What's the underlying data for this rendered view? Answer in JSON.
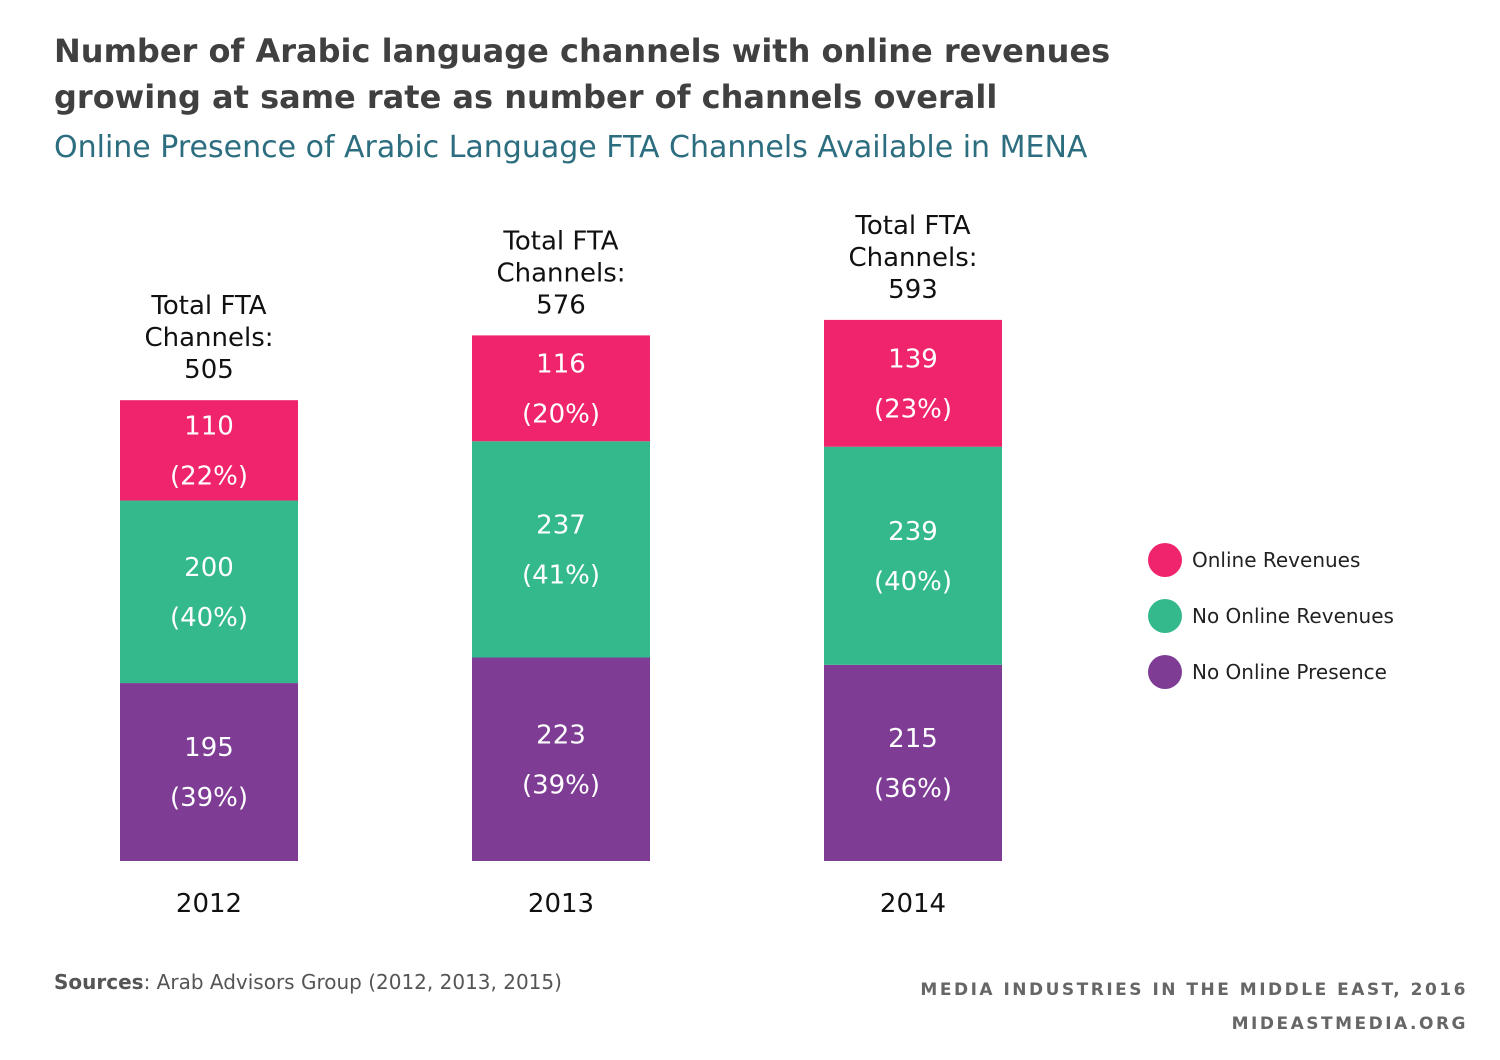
{
  "title_line1": "Number of Arabic language channels with online revenues",
  "title_line2": "growing at same rate as number of channels overall",
  "subtitle": "Online Presence of Arabic Language FTA Channels Available in MENA",
  "colors": {
    "title": "#404040",
    "subtitle": "#2c6e7f",
    "online_revenues": "#f0246c",
    "no_online_revenues": "#33b98b",
    "no_online_presence": "#7e3c95"
  },
  "chart_data": {
    "type": "bar",
    "stacked": true,
    "categories": [
      "2012",
      "2013",
      "2014"
    ],
    "series": [
      {
        "name": "No Online Presence",
        "values": [
          195,
          223,
          215
        ],
        "percent_labels": [
          "(39%)",
          "(39%)",
          "(36%)"
        ]
      },
      {
        "name": "No Online Revenues",
        "values": [
          200,
          237,
          239
        ],
        "percent_labels": [
          "(40%)",
          "(41%)",
          "(40%)"
        ]
      },
      {
        "name": "Online Revenues",
        "values": [
          110,
          116,
          139
        ],
        "percent_labels": [
          "(22%)",
          "(20%)",
          "(23%)"
        ]
      }
    ],
    "total_label_prefix": [
      "Total FTA",
      "Channels:"
    ],
    "totals": [
      505,
      576,
      593
    ],
    "legend_position": "right",
    "grid": false
  },
  "legend": [
    {
      "label": "Online Revenues",
      "color": "#f0246c"
    },
    {
      "label": "No Online Revenues",
      "color": "#33b98b"
    },
    {
      "label": "No Online Presence",
      "color": "#7e3c95"
    }
  ],
  "sources": {
    "label": "Sources",
    "text": ": Arab Advisors Group (2012, 2013, 2015)"
  },
  "footer": {
    "line1": "MEDIA INDUSTRIES IN THE MIDDLE EAST, 2016",
    "line2": "MIDEASTMEDIA.ORG"
  }
}
